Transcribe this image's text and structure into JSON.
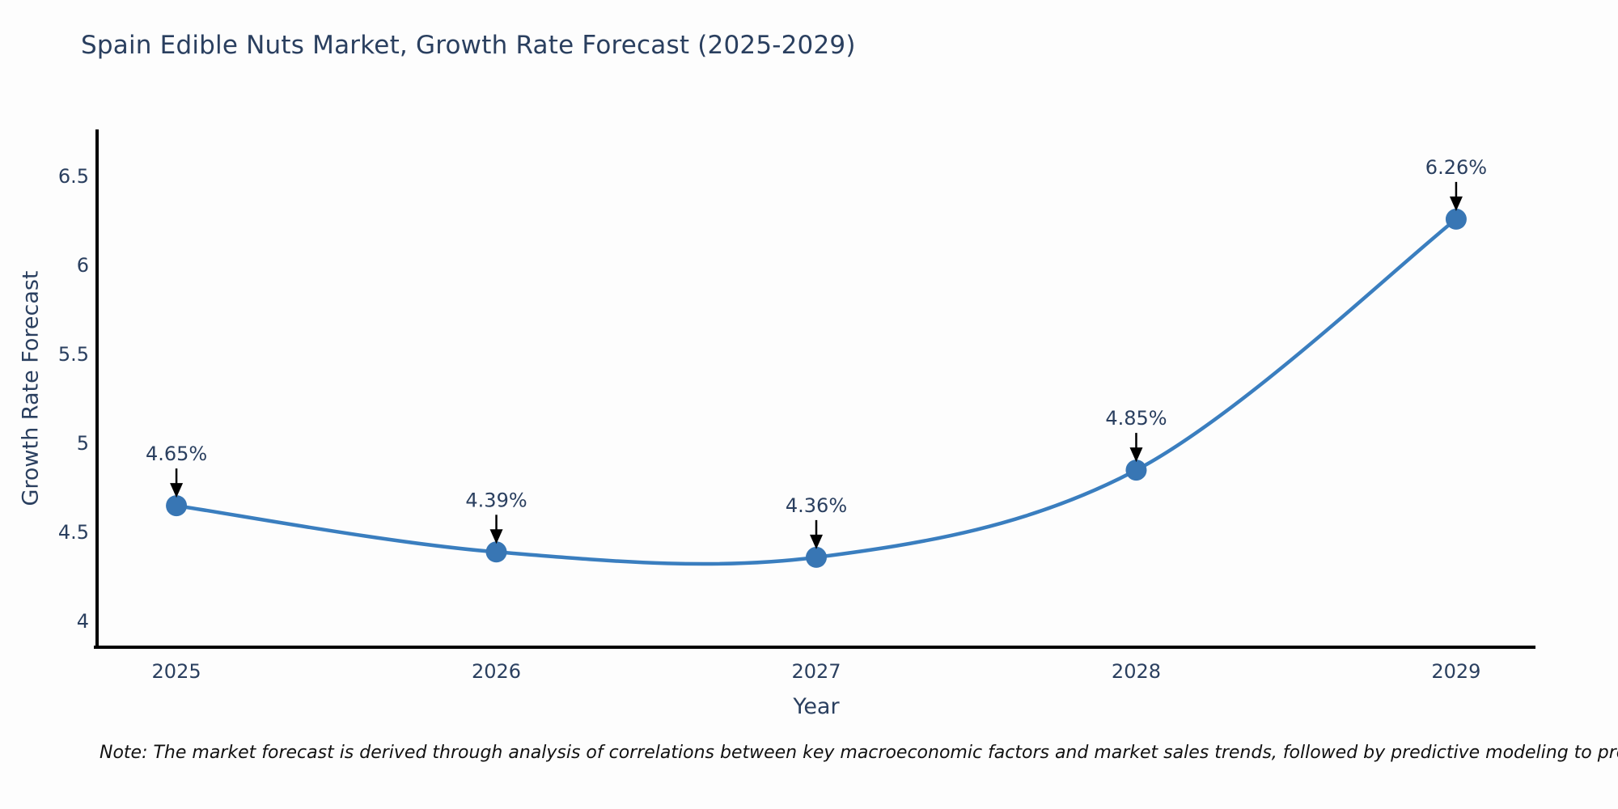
{
  "title": "Spain Edible Nuts Market, Growth Rate Forecast (2025-2029)",
  "note": "Note: The market forecast is derived through analysis of correlations between key macroeconomic factors and market sales trends, followed by predictive modeling to project future sales",
  "colors": {
    "line": "#3a7ebf",
    "marker": "#3876b4",
    "text": "#2a3f5f",
    "axis": "#000000",
    "annotation_arrow": "#000000",
    "background": "#fdfdfd"
  },
  "chart_data": {
    "type": "line",
    "title": "Spain Edible Nuts Market, Growth Rate Forecast (2025-2029)",
    "xlabel": "Year",
    "ylabel": "Growth Rate Forecast",
    "x": [
      2025,
      2026,
      2027,
      2028,
      2029
    ],
    "values": [
      4.65,
      4.39,
      4.36,
      4.85,
      6.26
    ],
    "point_labels": [
      "4.65%",
      "4.39%",
      "4.36%",
      "4.85%",
      "6.26%"
    ],
    "x_tick_labels": [
      "2025",
      "2026",
      "2027",
      "2028",
      "2029"
    ],
    "y_tick_values": [
      4,
      4.5,
      5,
      5.5,
      6,
      6.5
    ],
    "y_tick_labels": [
      "4",
      "4.5",
      "5",
      "5.5",
      "6",
      "6.5"
    ],
    "xlim": [
      2024.752,
      2029.248
    ],
    "ylim": [
      3.855,
      6.764
    ],
    "grid": false,
    "legend": "none",
    "line_shape": "spline",
    "annotations": "arrow-down-to-point"
  }
}
